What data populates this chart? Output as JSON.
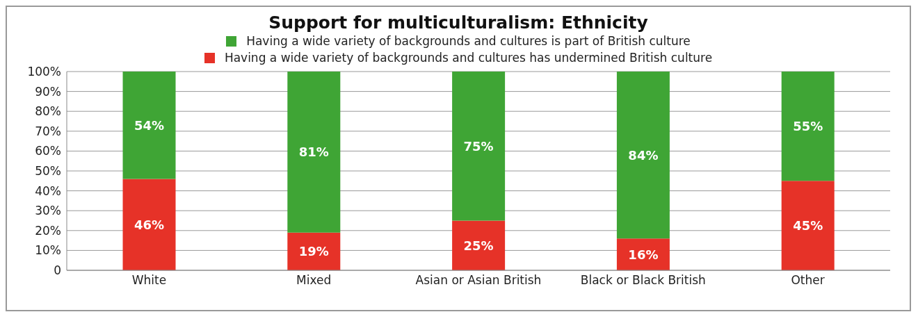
{
  "chart_data": {
    "type": "bar",
    "title": "Support for multiculturalism: Ethnicity",
    "categories": [
      "White",
      "Mixed",
      "Asian or Asian British",
      "Black or Black British",
      "Other"
    ],
    "stacked": true,
    "series": [
      {
        "name": "Having a wide variety of backgrounds and cultures has undermined British culture",
        "color": "#e63228",
        "values": [
          46,
          19,
          25,
          16,
          45
        ],
        "value_labels": [
          "46%",
          "19%",
          "25%",
          "16%",
          "45%"
        ]
      },
      {
        "name": "Having a wide variety of backgrounds and cultures is part of British culture",
        "color": "#3fa535",
        "values": [
          54,
          81,
          75,
          84,
          55
        ],
        "value_labels": [
          "54%",
          "81%",
          "75%",
          "84%",
          "55%"
        ]
      }
    ],
    "ylim": [
      0,
      100
    ],
    "yticks": [
      {
        "value": 0,
        "label": "0"
      },
      {
        "value": 10,
        "label": "10%"
      },
      {
        "value": 20,
        "label": "20%"
      },
      {
        "value": 30,
        "label": "30%"
      },
      {
        "value": 40,
        "label": "40%"
      },
      {
        "value": 50,
        "label": "50%"
      },
      {
        "value": 60,
        "label": "60%"
      },
      {
        "value": 70,
        "label": "70%"
      },
      {
        "value": 80,
        "label": "80%"
      },
      {
        "value": 90,
        "label": "90%"
      },
      {
        "value": 100,
        "label": "100%"
      }
    ],
    "grid": "y",
    "legend": "top"
  }
}
